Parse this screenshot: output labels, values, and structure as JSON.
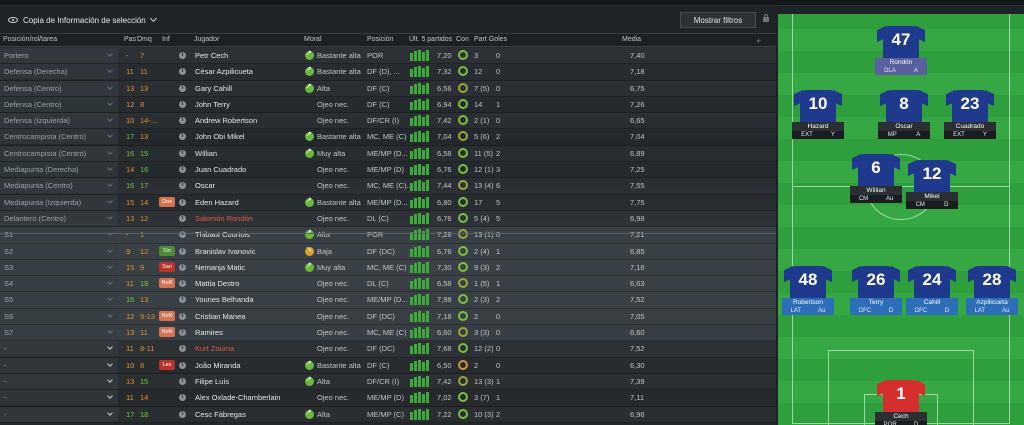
{
  "toolbar": {
    "copy_label": "Copia de Información de selección",
    "filter_label": "Mostrar filtros"
  },
  "headers": {
    "role": "Posición/rol/tarea",
    "pas": "Pas",
    "dmq": "Dmq",
    "inf": "Inf",
    "player": "Jugador",
    "moral": "Moral",
    "position": "Posición",
    "last5": "Últ. 5 partidos",
    "con": "Con",
    "part_goles": "Part Goles",
    "media": "Media"
  },
  "rows": [
    {
      "role": "Portero",
      "pas": "-",
      "dmq": "7",
      "tag": "",
      "player": "Petr Cech",
      "moral": "Bastante alta",
      "position": "POR",
      "form": "7,20",
      "apps": "3",
      "goals": "0",
      "media": "7,40"
    },
    {
      "role": "Defensa (Derecha)",
      "pas": "11",
      "dmq": "11",
      "tag": "",
      "player": "César Azpilicueta",
      "moral": "Bastante alta",
      "position": "DF (D), ...",
      "form": "7,32",
      "apps": "12",
      "goals": "0",
      "media": "7,18"
    },
    {
      "role": "Defensa (Centro)",
      "pas": "13",
      "dmq": "13",
      "tag": "",
      "player": "Gary Cahill",
      "moral": "Alta",
      "position": "DF (C)",
      "form": "6,56",
      "apps": "7 (5)",
      "goals": "0",
      "media": "6,75"
    },
    {
      "role": "Defensa (Centro)",
      "pas": "12",
      "dmq": "8",
      "tag": "",
      "player": "John Terry",
      "moral": "Ojeo nec.",
      "position": "DF (C)",
      "form": "6,94",
      "apps": "14",
      "goals": "1",
      "media": "7,26"
    },
    {
      "role": "Defensa (Izquierda)",
      "pas": "10",
      "dmq": "14-...",
      "tag": "",
      "player": "Andrew Robertson",
      "moral": "Ojeo nec.",
      "position": "DF/CR (I)",
      "form": "7,42",
      "apps": "2 (1)",
      "goals": "0",
      "media": "6,65"
    },
    {
      "role": "Centrocampista (Centro)",
      "pas": "17",
      "dmq": "13",
      "tag": "",
      "player": "John Obi Mikel",
      "moral": "Bastante alta",
      "position": "MC, ME (C)",
      "form": "7,04",
      "apps": "5 (6)",
      "goals": "2",
      "media": "7,04"
    },
    {
      "role": "Centrocampista (Centro)",
      "pas": "16",
      "dmq": "15",
      "tag": "",
      "player": "Willian",
      "moral": "Muy alta",
      "position": "ME/MP (D...",
      "form": "6,58",
      "apps": "11 (5)",
      "goals": "2",
      "media": "6,89"
    },
    {
      "role": "Mediapunta (Derecha)",
      "pas": "14",
      "dmq": "16",
      "tag": "",
      "player": "Juan Cuadrado",
      "moral": "Ojeo nec.",
      "position": "ME/MP (D)",
      "form": "6,76",
      "apps": "12 (1)",
      "goals": "3",
      "media": "7,25"
    },
    {
      "role": "Mediapunta (Centro)",
      "pas": "16",
      "dmq": "17",
      "tag": "",
      "player": "Oscar",
      "moral": "Ojeo nec.",
      "position": "MC, ME (C)...",
      "form": "7,44",
      "apps": "13 (4)",
      "goals": "6",
      "media": "7,55"
    },
    {
      "role": "Mediapunta (Izquierda)",
      "pas": "15",
      "dmq": "14",
      "tag": "Dos",
      "player": "Eden Hazard",
      "moral": "Bastante alta",
      "position": "ME/MP (D...",
      "form": "6,80",
      "apps": "17",
      "goals": "5",
      "media": "7,75"
    },
    {
      "role": "Delantero (Centro)",
      "pas": "13",
      "dmq": "12",
      "tag": "",
      "player": "Salomón Rondón",
      "moral": "Ojeo nec.",
      "position": "DL (C)",
      "form": "6,76",
      "apps": "5 (4)",
      "goals": "5",
      "media": "6,98"
    },
    {
      "role": "S1",
      "pas": "-",
      "dmq": "1",
      "tag": "",
      "player": "Thibaut Courtois",
      "moral": "Alta",
      "position": "POR",
      "form": "7,28",
      "apps": "13 (1)",
      "goals": "0",
      "media": "7,21"
    },
    {
      "role": "S2",
      "pas": "9",
      "dmq": "12",
      "tag": "Sin",
      "player": "Branislav Ivanovic",
      "moral": "Baja",
      "position": "DF (DC)",
      "form": "6,76",
      "apps": "2 (4)",
      "goals": "1",
      "media": "6,85"
    },
    {
      "role": "S3",
      "pas": "15",
      "dmq": "9",
      "tag": "San",
      "player": "Nemanja Matic",
      "moral": "Muy alta",
      "position": "MC, ME (C)",
      "form": "7,30",
      "apps": "9 (3)",
      "goals": "2",
      "media": "7,16"
    },
    {
      "role": "S4",
      "pas": "11",
      "dmq": "18",
      "tag": "NoR",
      "player": "Mattia Destro",
      "moral": "Ojeo nec.",
      "position": "DL (C)",
      "form": "6,58",
      "apps": "1 (5)",
      "goals": "1",
      "media": "6,63"
    },
    {
      "role": "S5",
      "pas": "16",
      "dmq": "13",
      "tag": "",
      "player": "Younes Belhanda",
      "moral": "Ojeo nec.",
      "position": "ME/MP (D...",
      "form": "7,98",
      "apps": "2 (3)",
      "goals": "2",
      "media": "7,52"
    },
    {
      "role": "S6",
      "pas": "12",
      "dmq": "9-13",
      "tag": "NoR",
      "player": "Cristian Manea",
      "moral": "Ojeo nec.",
      "position": "DF (DC)",
      "form": "7,18",
      "apps": "2",
      "goals": "0",
      "media": "7,05"
    },
    {
      "role": "S7",
      "pas": "13",
      "dmq": "11",
      "tag": "NoR",
      "player": "Ramires",
      "moral": "Ojeo nec.",
      "position": "MC, ME (C)",
      "form": "6,60",
      "apps": "3 (3)",
      "goals": "0",
      "media": "6,60"
    },
    {
      "role": "-",
      "pas": "11",
      "dmq": "8-11",
      "tag": "",
      "player": "Kurt Zouma",
      "moral": "Ojeo nec.",
      "position": "DF (DC)",
      "form": "7,68",
      "apps": "12 (2)",
      "goals": "0",
      "media": "7,52"
    },
    {
      "role": "-",
      "pas": "10",
      "dmq": "8",
      "tag": "Les",
      "player": "João Miranda",
      "moral": "Bastante alta",
      "position": "DF (C)",
      "form": "6,50",
      "apps": "2",
      "goals": "0",
      "media": "6,30"
    },
    {
      "role": "-",
      "pas": "13",
      "dmq": "15",
      "tag": "",
      "player": "Filipe Luís",
      "moral": "Alta",
      "position": "DF/CR (I)",
      "form": "7,42",
      "apps": "13 (3)",
      "goals": "1",
      "media": "7,39"
    },
    {
      "role": "-",
      "pas": "11",
      "dmq": "14",
      "tag": "",
      "player": "Alex Oxlade-Chamberlain",
      "moral": "Ojeo nec.",
      "position": "ME/MP (D)",
      "form": "7,02",
      "apps": "3 (7)",
      "goals": "1",
      "media": "7,11"
    },
    {
      "role": "-",
      "pas": "17",
      "dmq": "18",
      "tag": "",
      "player": "Cesc Fàbregas",
      "moral": "Alta",
      "position": "ME/MP (C)",
      "form": "7,22",
      "apps": "10 (3)",
      "goals": "2",
      "media": "6,96"
    }
  ],
  "pitch": {
    "players": [
      {
        "num": "47",
        "name": "Rondón",
        "p1": "DLA",
        "p2": "A",
        "style": "att"
      },
      {
        "num": "10",
        "name": "Hazard",
        "p1": "EXT",
        "p2": "Y",
        "style": ""
      },
      {
        "num": "8",
        "name": "Oscar",
        "p1": "MP",
        "p2": "A",
        "style": ""
      },
      {
        "num": "23",
        "name": "Cuadrado",
        "p1": "EXT",
        "p2": "Y",
        "style": ""
      },
      {
        "num": "6",
        "name": "Willian",
        "p1": "CM",
        "p2": "Au",
        "style": ""
      },
      {
        "num": "12",
        "name": "Mikel",
        "p1": "CM",
        "p2": "D",
        "style": ""
      },
      {
        "num": "48",
        "name": "Robertson",
        "p1": "LAT",
        "p2": "Au",
        "style": "def"
      },
      {
        "num": "26",
        "name": "Terry",
        "p1": "DFC",
        "p2": "D",
        "style": "def"
      },
      {
        "num": "24",
        "name": "Cahill",
        "p1": "DFC",
        "p2": "D",
        "style": "def"
      },
      {
        "num": "28",
        "name": "Azpilicueta",
        "p1": "LAT",
        "p2": "Au",
        "style": "def"
      },
      {
        "num": "1",
        "name": "Cech",
        "p1": "POR",
        "p2": "D",
        "style": "gk"
      }
    ]
  }
}
